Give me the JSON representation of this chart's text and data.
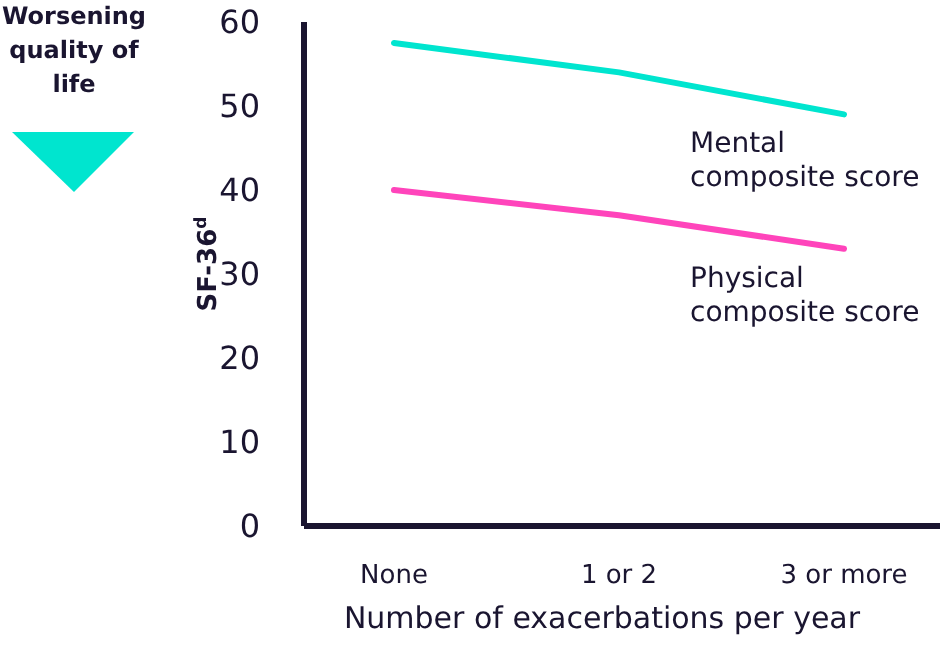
{
  "chart_data": {
    "type": "line",
    "ylabel": "SF-36$^{d}$",
    "xlabel": "Number of exacerbations per year",
    "categories": [
      "None",
      "1 or 2",
      "3 or more"
    ],
    "ylim": [
      0,
      60
    ],
    "yticks": [
      0,
      10,
      20,
      30,
      40,
      50,
      60
    ],
    "grid": false,
    "legend": false,
    "marker": "none",
    "line_style": "solid",
    "series": [
      {
        "name": "Mental composite score",
        "color": "#00e5cf",
        "values": [
          57.5,
          54,
          49
        ]
      },
      {
        "name": "Physical composite score",
        "color": "#ff44bb",
        "values": [
          40,
          37,
          33
        ]
      }
    ],
    "annotations": [
      "Worsening quality of life"
    ]
  }
}
